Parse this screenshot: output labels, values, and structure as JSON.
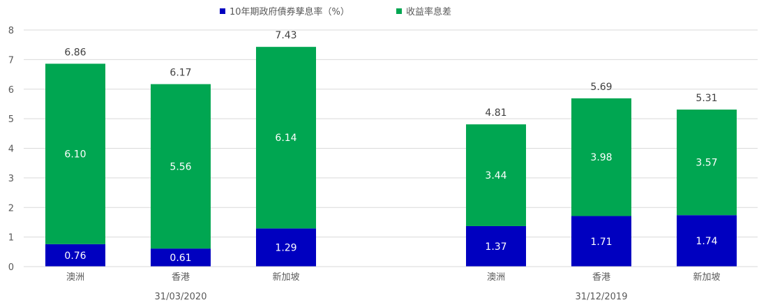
{
  "chart_data": {
    "type": "bar",
    "stacked": true,
    "legend_position": "top",
    "grid": true,
    "ylim": [
      0,
      8
    ],
    "yticks": [
      "0",
      "1",
      "2",
      "3",
      "4",
      "5",
      "6",
      "7",
      "8"
    ],
    "groups": [
      {
        "label": "31/03/2020",
        "categories": [
          "澳洲",
          "香港",
          "新加坡"
        ]
      },
      {
        "label": "31/12/2019",
        "categories": [
          "澳洲",
          "香港",
          "新加坡"
        ]
      }
    ],
    "series": [
      {
        "name": "10年期政府債券孳息率（%）",
        "color": "#0000c0",
        "values": [
          0.76,
          0.61,
          1.29,
          1.37,
          1.71,
          1.74
        ],
        "labels": [
          "0.76",
          "0.61",
          "1.29",
          "1.37",
          "1.71",
          "1.74"
        ]
      },
      {
        "name": "收益率息差",
        "color": "#00a651",
        "values": [
          6.1,
          5.56,
          6.14,
          3.44,
          3.98,
          3.57
        ],
        "labels": [
          "6.10",
          "5.56",
          "6.14",
          "3.44",
          "3.98",
          "3.57"
        ]
      }
    ],
    "totals": [
      "6.86",
      "6.17",
      "7.43",
      "4.81",
      "5.69",
      "5.31"
    ]
  }
}
